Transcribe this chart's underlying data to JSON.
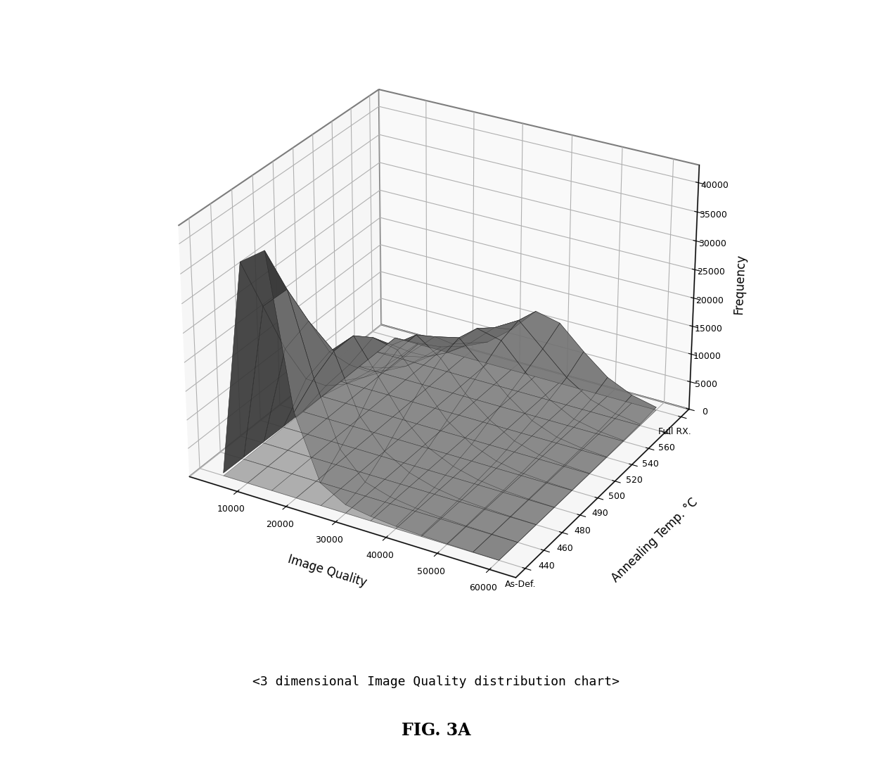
{
  "ylabel": "Frequency",
  "xlabel": "Image Quality",
  "anneal_ylabel": "Annealing Temp. °C",
  "title": "<3 dimensional Image Quality distribution chart>",
  "fig_title": "FIG. 3A",
  "anneal_labels": [
    "As-Def.",
    "440",
    "460",
    "480",
    "490",
    "500",
    "520",
    "540",
    "560",
    "Full RX."
  ],
  "background_color": "#ffffff",
  "elev": 28,
  "azim": -60,
  "figsize": [
    12.4,
    11.0
  ],
  "dpi": 100,
  "freq_data": [
    [
      500,
      38000,
      41000,
      15000,
      4000,
      1500,
      800,
      400,
      200,
      100,
      50,
      20
    ],
    [
      400,
      28000,
      32000,
      18000,
      7000,
      2500,
      1200,
      600,
      300,
      150,
      70,
      20
    ],
    [
      300,
      18000,
      24000,
      20000,
      10000,
      5000,
      2500,
      1200,
      500,
      250,
      100,
      30
    ],
    [
      200,
      10000,
      16000,
      20000,
      14000,
      8000,
      4000,
      2000,
      900,
      350,
      150,
      40
    ],
    [
      150,
      6000,
      11000,
      17000,
      16000,
      11000,
      6000,
      3000,
      1300,
      500,
      200,
      60
    ],
    [
      100,
      3500,
      7000,
      13000,
      16000,
      13000,
      8000,
      4500,
      2000,
      800,
      300,
      80
    ],
    [
      80,
      2000,
      4500,
      9000,
      13000,
      14000,
      10000,
      6000,
      2800,
      1100,
      400,
      100
    ],
    [
      60,
      1000,
      2500,
      5500,
      9000,
      13000,
      12000,
      7500,
      3800,
      1500,
      600,
      150
    ],
    [
      40,
      500,
      1500,
      3500,
      6500,
      10500,
      13000,
      9000,
      5000,
      2200,
      900,
      250
    ],
    [
      20,
      200,
      700,
      2000,
      4000,
      7500,
      12000,
      11000,
      7000,
      3500,
      1500,
      500
    ]
  ],
  "iq_bins": [
    5000,
    10000,
    15000,
    20000,
    25000,
    30000,
    35000,
    40000,
    45000,
    50000,
    55000,
    60000
  ]
}
